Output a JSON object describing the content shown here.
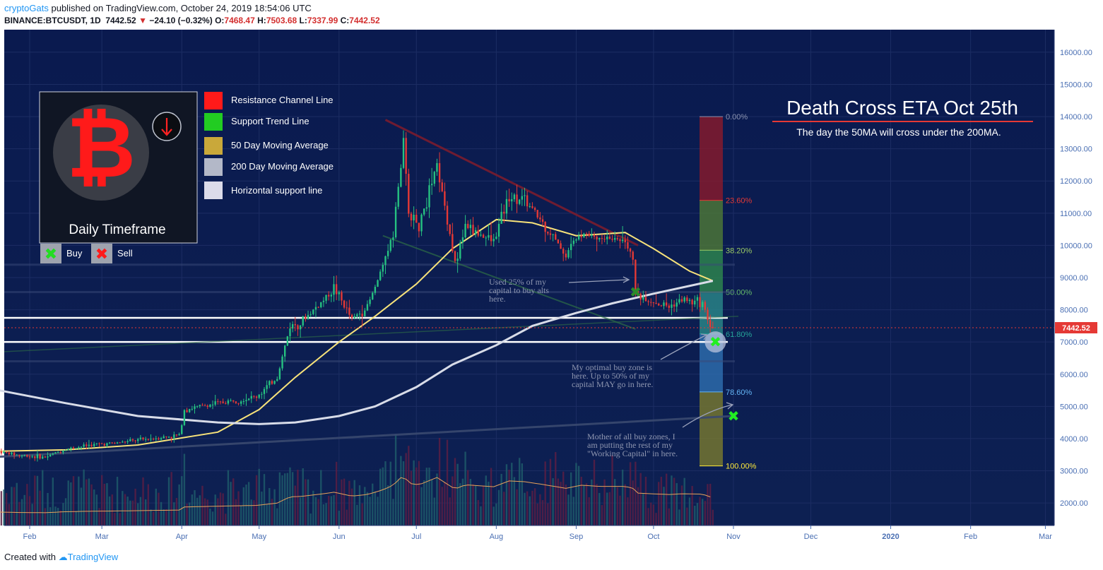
{
  "header": {
    "author": "cryptoGats",
    "published": "published on TradingView.com, October 24, 2019 18:54:06 UTC",
    "symbol": "BINANCE:BTCUSDT, 1D",
    "last": "7442.52",
    "change": "−24.10 (−0.32%)",
    "o_label": "O:",
    "o": "7468.47",
    "h_label": "H:",
    "h": "7503.68",
    "l_label": "L:",
    "l": "7337.99",
    "c_label": "C:",
    "c": "7442.52"
  },
  "footer": {
    "created": "Created with",
    "brand": "TradingView"
  },
  "colors": {
    "background": "#0b1a4e",
    "up": "#26c281",
    "down": "#e53935",
    "ma50": "#f7e27a",
    "ma200": "#d8dce8",
    "resistance": "#8b1a2a",
    "support": "#2e6e46"
  },
  "badge": {
    "title": "Daily Timeframe",
    "icon": "bitcoin-icon"
  },
  "legend": [
    {
      "label": "Resistance Channel Line",
      "color": "#ff1a1a"
    },
    {
      "label": "Support Trend Line",
      "color": "#22cc22"
    },
    {
      "label": "50 Day Moving Average",
      "color": "#c9a83a"
    },
    {
      "label": "200 Day Moving Average",
      "color": "#b3b8c8"
    },
    {
      "label": "Horizontal support line",
      "color": "#dcdcea"
    }
  ],
  "markers": {
    "buy": "Buy",
    "sell": "Sell"
  },
  "headline": {
    "title": "Death Cross ETA Oct 25th",
    "subtitle": "The day the 50MA will cross under the 200MA."
  },
  "annotations": [
    {
      "id": "alts",
      "lines": [
        "Used 25% of my",
        "capital to buy alts",
        "here."
      ]
    },
    {
      "id": "optimal",
      "lines": [
        "My optimal buy zone is",
        "here. Up to 50% of my",
        "capital MAY go in here."
      ]
    },
    {
      "id": "mother",
      "lines": [
        "Mother of all buy zones, I",
        "am putting the rest of my",
        "\"Working Capital\" in here."
      ]
    }
  ],
  "chart_data": {
    "type": "candlestick",
    "y_axis": {
      "ticks": [
        "16000.00",
        "15000.00",
        "14000.00",
        "13000.00",
        "12000.00",
        "11000.00",
        "10000.00",
        "9000.00",
        "8000.00",
        "7000.00",
        "6000.00",
        "5000.00",
        "4000.00",
        "3000.00",
        "2000.00"
      ],
      "min": 1300,
      "max": 16700
    },
    "x_axis": {
      "ticks": [
        {
          "label": "Feb",
          "bold": false
        },
        {
          "label": "Mar",
          "bold": false
        },
        {
          "label": "Apr",
          "bold": false
        },
        {
          "label": "May",
          "bold": false
        },
        {
          "label": "Jun",
          "bold": false
        },
        {
          "label": "Jul",
          "bold": false
        },
        {
          "label": "Aug",
          "bold": false
        },
        {
          "label": "Sep",
          "bold": false
        },
        {
          "label": "Oct",
          "bold": false
        },
        {
          "label": "Nov",
          "bold": false
        },
        {
          "label": "Dec",
          "bold": false
        },
        {
          "label": "2020",
          "bold": true
        },
        {
          "label": "Feb",
          "bold": false
        },
        {
          "label": "Mar",
          "bold": false
        }
      ]
    },
    "price_label": "7442.52",
    "price_anchors": [
      [
        "2019-01-20",
        3600
      ],
      [
        "2019-01-28",
        3480
      ],
      [
        "2019-02-07",
        3420
      ],
      [
        "2019-02-14",
        3650
      ],
      [
        "2019-02-24",
        3800
      ],
      [
        "2019-03-05",
        3850
      ],
      [
        "2019-03-20",
        4000
      ],
      [
        "2019-03-31",
        4100
      ],
      [
        "2019-04-02",
        4900
      ],
      [
        "2019-04-15",
        5100
      ],
      [
        "2019-04-30",
        5300
      ],
      [
        "2019-05-08",
        5900
      ],
      [
        "2019-05-13",
        7500
      ],
      [
        "2019-05-17",
        7600
      ],
      [
        "2019-05-26",
        8300
      ],
      [
        "2019-05-30",
        8700
      ],
      [
        "2019-06-06",
        7700
      ],
      [
        "2019-06-12",
        8100
      ],
      [
        "2019-06-18",
        9300
      ],
      [
        "2019-06-22",
        10500
      ],
      [
        "2019-06-26",
        13100
      ],
      [
        "2019-06-28",
        11000
      ],
      [
        "2019-07-02",
        10600
      ],
      [
        "2019-07-09",
        12500
      ],
      [
        "2019-07-16",
        9500
      ],
      [
        "2019-07-20",
        10600
      ],
      [
        "2019-07-31",
        10100
      ],
      [
        "2019-08-06",
        11600
      ],
      [
        "2019-08-12",
        11400
      ],
      [
        "2019-08-19",
        10700
      ],
      [
        "2019-08-28",
        9700
      ],
      [
        "2019-09-03",
        10500
      ],
      [
        "2019-09-10",
        10200
      ],
      [
        "2019-09-20",
        10200
      ],
      [
        "2019-09-23",
        9700
      ],
      [
        "2019-09-24",
        8500
      ],
      [
        "2019-09-30",
        8300
      ],
      [
        "2019-10-07",
        8100
      ],
      [
        "2019-10-12",
        8300
      ],
      [
        "2019-10-20",
        8200
      ],
      [
        "2019-10-23",
        7500
      ],
      [
        "2019-10-24",
        7442
      ]
    ],
    "series": [
      {
        "name": "50 Day Moving Average",
        "points": [
          [
            "2019-01-15",
            3600
          ],
          [
            "2019-02-15",
            3650
          ],
          [
            "2019-03-15",
            3800
          ],
          [
            "2019-04-15",
            4200
          ],
          [
            "2019-05-01",
            4900
          ],
          [
            "2019-05-15",
            5900
          ],
          [
            "2019-06-01",
            7000
          ],
          [
            "2019-06-15",
            7800
          ],
          [
            "2019-07-01",
            8800
          ],
          [
            "2019-07-15",
            9900
          ],
          [
            "2019-08-01",
            10800
          ],
          [
            "2019-08-15",
            10700
          ],
          [
            "2019-09-01",
            10300
          ],
          [
            "2019-09-20",
            10400
          ],
          [
            "2019-10-01",
            9900
          ],
          [
            "2019-10-15",
            9200
          ],
          [
            "2019-10-24",
            8900
          ]
        ]
      },
      {
        "name": "200 Day Moving Average",
        "points": [
          [
            "2019-01-01",
            5700
          ],
          [
            "2019-01-20",
            5500
          ],
          [
            "2019-02-15",
            5100
          ],
          [
            "2019-03-15",
            4700
          ],
          [
            "2019-04-15",
            4500
          ],
          [
            "2019-05-01",
            4450
          ],
          [
            "2019-05-15",
            4500
          ],
          [
            "2019-06-01",
            4700
          ],
          [
            "2019-06-15",
            5000
          ],
          [
            "2019-07-01",
            5600
          ],
          [
            "2019-07-15",
            6300
          ],
          [
            "2019-08-01",
            6900
          ],
          [
            "2019-08-15",
            7500
          ],
          [
            "2019-09-01",
            7900
          ],
          [
            "2019-09-15",
            8200
          ],
          [
            "2019-10-01",
            8500
          ],
          [
            "2019-10-24",
            8900
          ]
        ]
      }
    ],
    "lines": [
      {
        "name": "Resistance Channel Line",
        "from": [
          "2019-06-19",
          13900
        ],
        "to": [
          "2019-09-25",
          10000
        ]
      },
      {
        "name": "Support Trend Line",
        "from": [
          "2019-01-01",
          3350
        ],
        "to": [
          "2019-11-01",
          4700
        ]
      },
      {
        "name": "Horizontal support line",
        "value": 7750
      },
      {
        "name": "Horizontal support line",
        "value": 7000
      }
    ],
    "fibonacci": {
      "start": "2019-10-13",
      "end": "2019-10-22",
      "levels": [
        {
          "ratio": "0.00%",
          "price": 14000
        },
        {
          "ratio": "23.60%",
          "price": 11400
        },
        {
          "ratio": "38.20%",
          "price": 9850
        },
        {
          "ratio": "50.00%",
          "price": 8550
        },
        {
          "ratio": "61.80%",
          "price": 7250
        },
        {
          "ratio": "78.60%",
          "price": 5450
        },
        {
          "ratio": "100.00%",
          "price": 3150
        }
      ]
    },
    "signals": [
      {
        "type": "buy",
        "date": "2019-09-24",
        "price": 8550
      },
      {
        "type": "buy",
        "date": "2019-10-25",
        "price": 7000
      },
      {
        "type": "buy",
        "date": "2019-11-01",
        "price": 4700
      }
    ]
  }
}
